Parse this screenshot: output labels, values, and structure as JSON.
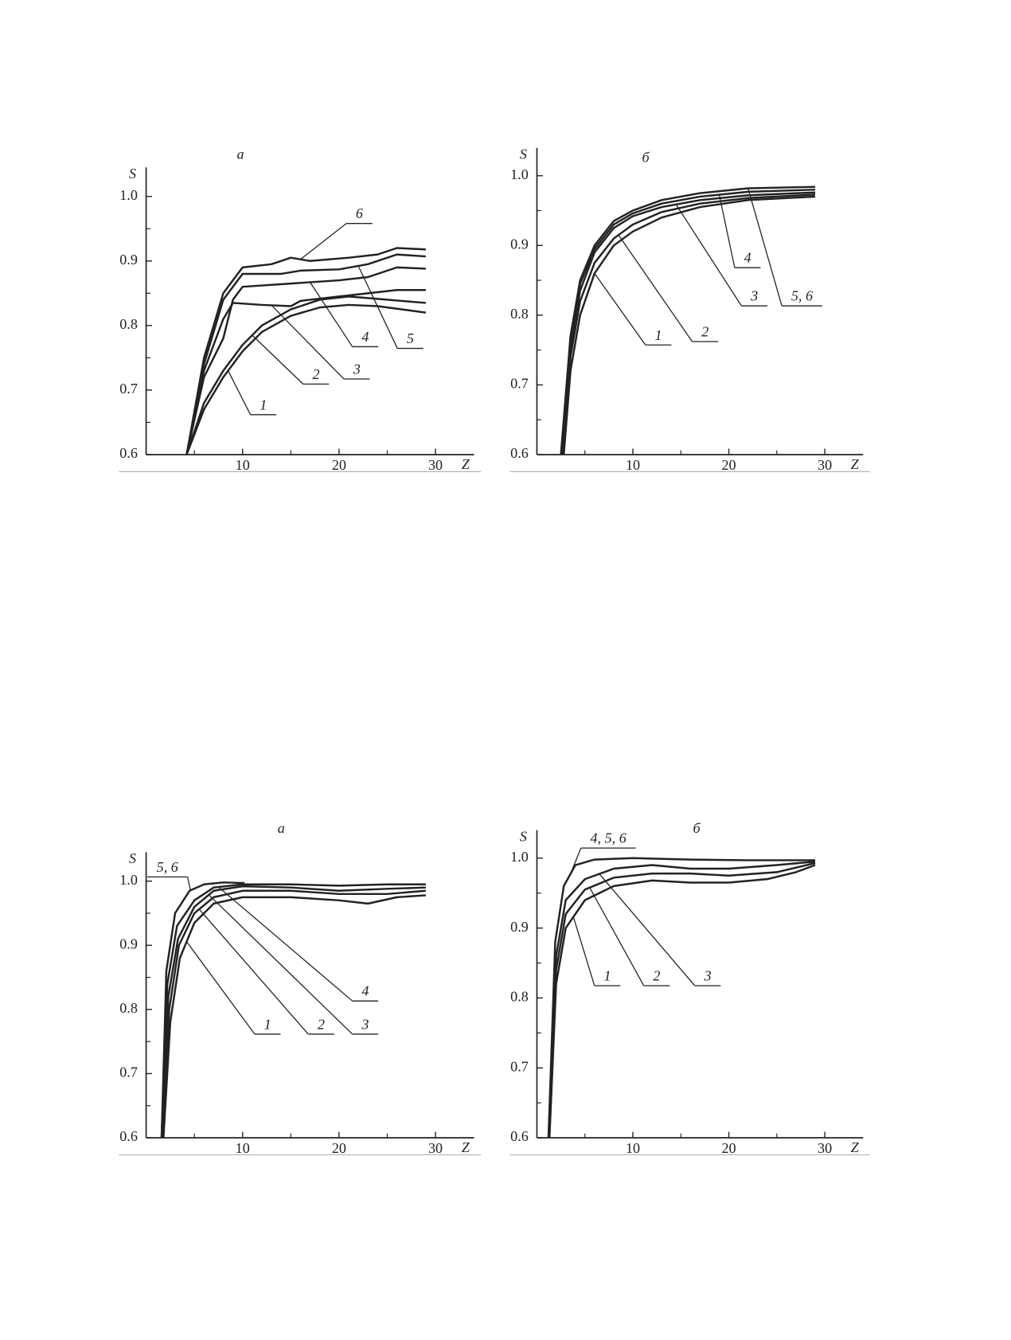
{
  "chart_data": [
    {
      "type": "line",
      "title": "а",
      "x_label": "Z",
      "y_label": "S",
      "xlim": [
        0,
        34
      ],
      "ylim": [
        0.6,
        1.045
      ],
      "xticks": [
        10,
        20,
        30
      ],
      "yticks": [
        0.6,
        0.7,
        0.8,
        0.9,
        {
          "value": 1,
          "label": "1.0"
        }
      ],
      "series": [
        {
          "name": "1",
          "color": "#222222",
          "x": [
            4.2,
            6,
            8,
            10,
            12,
            15,
            18,
            21,
            24,
            29
          ],
          "values": [
            0.6,
            0.67,
            0.72,
            0.76,
            0.79,
            0.815,
            0.828,
            0.832,
            0.83,
            0.82
          ]
        },
        {
          "name": "2",
          "color": "#222222",
          "x": [
            4.2,
            6,
            8,
            10,
            12,
            15,
            18,
            21,
            25,
            29
          ],
          "values": [
            0.6,
            0.68,
            0.73,
            0.77,
            0.8,
            0.825,
            0.84,
            0.845,
            0.84,
            0.835
          ]
        },
        {
          "name": "3",
          "color": "#222222",
          "x": [
            4.2,
            6,
            8,
            9,
            12,
            15,
            16,
            17,
            20,
            26,
            29
          ],
          "values": [
            0.6,
            0.73,
            0.81,
            0.835,
            0.832,
            0.83,
            0.838,
            0.84,
            0.845,
            0.855,
            0.855
          ]
        },
        {
          "name": "4",
          "color": "#222222",
          "x": [
            4.2,
            6,
            8,
            9,
            10,
            15,
            20,
            23,
            26,
            29
          ],
          "values": [
            0.6,
            0.72,
            0.78,
            0.84,
            0.86,
            0.865,
            0.87,
            0.875,
            0.89,
            0.888
          ]
        },
        {
          "name": "5",
          "color": "#222222",
          "x": [
            4.2,
            6,
            8,
            10,
            14,
            16,
            20,
            23,
            26,
            29
          ],
          "values": [
            0.6,
            0.74,
            0.84,
            0.88,
            0.88,
            0.885,
            0.887,
            0.895,
            0.91,
            0.907
          ]
        },
        {
          "name": "6",
          "color": "#222222",
          "x": [
            4.2,
            6,
            8,
            10,
            13,
            15,
            17,
            21,
            24,
            26,
            29
          ],
          "values": [
            0.6,
            0.75,
            0.85,
            0.89,
            0.895,
            0.905,
            0.9,
            0.905,
            0.91,
            0.92,
            0.918
          ]
        }
      ]
    },
    {
      "type": "line",
      "title": "б",
      "x_label": "Z",
      "y_label": "S",
      "xlim": [
        0,
        34
      ],
      "ylim": [
        0.6,
        1.04
      ],
      "xticks": [
        10,
        20,
        30
      ],
      "yticks": [
        0.6,
        0.7,
        0.8,
        0.9,
        {
          "value": 1,
          "label": "1.0"
        }
      ],
      "series": [
        {
          "name": "1",
          "color": "#222222",
          "x": [
            2.8,
            3.5,
            4.5,
            6,
            8,
            10,
            13,
            17,
            22,
            29
          ],
          "values": [
            0.6,
            0.72,
            0.8,
            0.86,
            0.9,
            0.92,
            0.94,
            0.955,
            0.965,
            0.97
          ]
        },
        {
          "name": "2",
          "color": "#222222",
          "x": [
            2.7,
            3.5,
            4.5,
            6,
            8,
            10,
            13,
            17,
            22,
            29
          ],
          "values": [
            0.6,
            0.74,
            0.82,
            0.875,
            0.91,
            0.93,
            0.948,
            0.96,
            0.968,
            0.973
          ]
        },
        {
          "name": "3",
          "color": "#222222",
          "x": [
            2.6,
            3.5,
            4.5,
            6,
            8,
            10,
            13,
            17,
            22,
            29
          ],
          "values": [
            0.6,
            0.75,
            0.835,
            0.89,
            0.925,
            0.942,
            0.955,
            0.965,
            0.972,
            0.976
          ]
        },
        {
          "name": "4",
          "color": "#222222",
          "x": [
            2.6,
            3.5,
            4.5,
            6,
            8,
            10,
            13,
            17,
            22,
            29
          ],
          "values": [
            0.6,
            0.76,
            0.845,
            0.895,
            0.93,
            0.946,
            0.96,
            0.97,
            0.977,
            0.98
          ]
        },
        {
          "name": "5, 6",
          "color": "#222222",
          "x": [
            2.5,
            3.5,
            4.5,
            6,
            8,
            10,
            13,
            17,
            22,
            29
          ],
          "values": [
            0.6,
            0.77,
            0.85,
            0.9,
            0.935,
            0.95,
            0.965,
            0.975,
            0.982,
            0.984
          ]
        }
      ]
    },
    {
      "type": "line",
      "title": "а",
      "x_label": "Z",
      "y_label": "S",
      "xlim": [
        0,
        34
      ],
      "ylim": [
        0.6,
        1.045
      ],
      "xticks": [
        10,
        20,
        30
      ],
      "yticks": [
        0.6,
        0.7,
        0.8,
        0.9,
        {
          "value": 1,
          "label": "1.0"
        }
      ],
      "series": [
        {
          "name": "1",
          "color": "#222222",
          "x": [
            1.8,
            2.5,
            3.5,
            5,
            7,
            10,
            15,
            20,
            23,
            26,
            29
          ],
          "values": [
            0.6,
            0.78,
            0.88,
            0.935,
            0.965,
            0.975,
            0.975,
            0.97,
            0.965,
            0.975,
            0.978
          ]
        },
        {
          "name": "2",
          "color": "#222222",
          "x": [
            1.7,
            2.4,
            3.4,
            5,
            7,
            10,
            15,
            20,
            25,
            29
          ],
          "values": [
            0.6,
            0.8,
            0.9,
            0.95,
            0.975,
            0.985,
            0.985,
            0.98,
            0.98,
            0.985
          ]
        },
        {
          "name": "3",
          "color": "#222222",
          "x": [
            1.7,
            2.3,
            3.3,
            5,
            7,
            10,
            15,
            20,
            25,
            29
          ],
          "values": [
            0.6,
            0.82,
            0.91,
            0.96,
            0.985,
            0.992,
            0.99,
            0.985,
            0.988,
            0.99
          ]
        },
        {
          "name": "4",
          "color": "#222222",
          "x": [
            1.6,
            2.2,
            3.2,
            5,
            7,
            10,
            15,
            20,
            25,
            29
          ],
          "values": [
            0.6,
            0.84,
            0.93,
            0.97,
            0.99,
            0.995,
            0.995,
            0.993,
            0.995,
            0.995
          ]
        },
        {
          "name": "5, 6",
          "color": "#222222",
          "x": [
            1.6,
            2.1,
            3,
            4.5,
            6,
            8,
            10.2
          ],
          "values": [
            0.6,
            0.86,
            0.95,
            0.985,
            0.995,
            0.998,
            0.997
          ]
        }
      ]
    },
    {
      "type": "line",
      "title": "б",
      "x_label": "Z",
      "y_label": "S",
      "xlim": [
        0,
        34
      ],
      "ylim": [
        0.6,
        1.04
      ],
      "xticks": [
        10,
        20,
        30
      ],
      "yticks": [
        0.6,
        0.7,
        0.8,
        0.9,
        {
          "value": 1,
          "label": "1.0"
        }
      ],
      "series": [
        {
          "name": "1",
          "color": "#222222",
          "x": [
            1.3,
            2,
            3,
            5,
            8,
            12,
            16,
            20,
            24,
            27,
            29
          ],
          "values": [
            0.6,
            0.82,
            0.9,
            0.94,
            0.96,
            0.968,
            0.965,
            0.965,
            0.97,
            0.98,
            0.99
          ]
        },
        {
          "name": "2",
          "color": "#222222",
          "x": [
            1.3,
            2,
            3,
            5,
            8,
            12,
            16,
            20,
            25,
            29
          ],
          "values": [
            0.6,
            0.84,
            0.92,
            0.955,
            0.972,
            0.978,
            0.978,
            0.975,
            0.98,
            0.993
          ]
        },
        {
          "name": "3",
          "color": "#222222",
          "x": [
            1.2,
            2,
            3,
            5,
            8,
            12,
            16,
            20,
            25,
            29
          ],
          "values": [
            0.6,
            0.86,
            0.94,
            0.97,
            0.985,
            0.99,
            0.985,
            0.985,
            0.99,
            0.995
          ]
        },
        {
          "name": "4, 5, 6",
          "color": "#222222",
          "x": [
            1.2,
            1.9,
            2.8,
            4,
            6,
            10,
            16,
            22,
            29
          ],
          "values": [
            0.6,
            0.88,
            0.96,
            0.99,
            0.998,
            1.0,
            0.998,
            0.997,
            0.997
          ]
        }
      ]
    }
  ]
}
